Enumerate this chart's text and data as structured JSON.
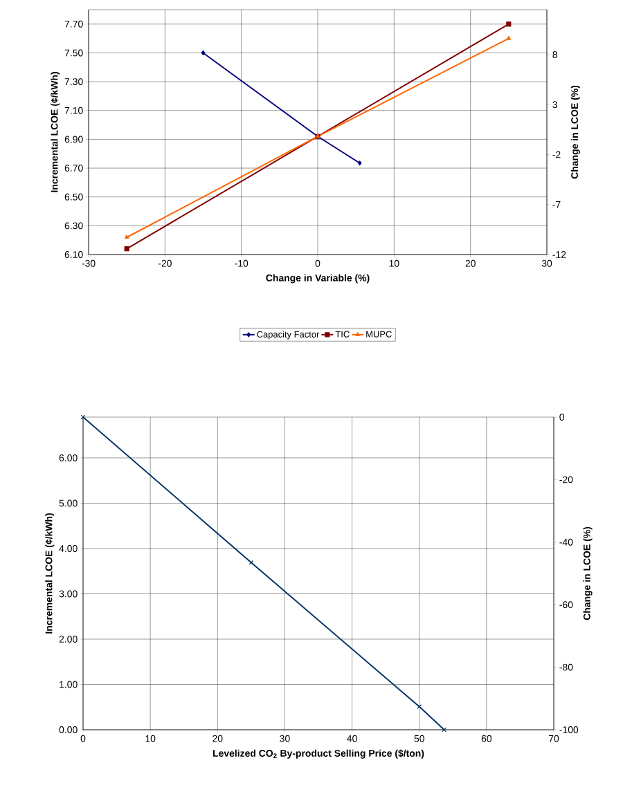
{
  "chart_data": [
    {
      "type": "line",
      "xlabel": "Change in Variable (%)",
      "ylabel": "Incremental LCOE (¢/kWh)",
      "y2label": "Change in LCOE (%)",
      "xlim": [
        -30,
        30
      ],
      "xticks": [
        -30,
        -20,
        -10,
        0,
        10,
        20,
        30
      ],
      "ylim": [
        6.1,
        7.8
      ],
      "yticks": [
        {
          "value": 6.1,
          "label": "6.10"
        },
        {
          "value": 6.3,
          "label": "6.30"
        },
        {
          "value": 6.5,
          "label": "6.50"
        },
        {
          "value": 6.7,
          "label": "6.70"
        },
        {
          "value": 6.9,
          "label": "6.90"
        },
        {
          "value": 7.1,
          "label": "7.10"
        },
        {
          "value": 7.3,
          "label": "7.30"
        },
        {
          "value": 7.5,
          "label": "7.50"
        },
        {
          "value": 7.7,
          "label": "7.70"
        }
      ],
      "y2lim": [
        -12,
        12.5
      ],
      "y2ticks": [
        -12,
        -7,
        -2,
        3,
        8
      ],
      "grid": true,
      "legend": "bottom",
      "line_style": "solid",
      "series": [
        {
          "name": "Capacity Factor",
          "color": "#000080",
          "marker": "diamond",
          "x": [
            -15,
            0,
            5.5
          ],
          "values": [
            7.5,
            6.92,
            6.735
          ]
        },
        {
          "name": "TIC",
          "color": "#800000",
          "marker": "square",
          "x": [
            -25,
            0,
            25
          ],
          "values": [
            6.14,
            6.92,
            7.7
          ]
        },
        {
          "name": "MUPC",
          "color": "#ff6600",
          "marker": "triangle",
          "x": [
            -25,
            0,
            25
          ],
          "values": [
            6.22,
            6.92,
            7.6
          ]
        }
      ]
    },
    {
      "type": "line",
      "xlabel": "Levelized CO$_{2}$ By-product Selling Price ($/ton)",
      "ylabel": "Incremental LCOE (¢/kWh)",
      "y2label": "Change in LCOE (%)",
      "xlim": [
        0,
        70
      ],
      "xticks": [
        0,
        10,
        20,
        30,
        40,
        50,
        60,
        70
      ],
      "ylim": [
        0,
        6.9
      ],
      "yticks": [
        {
          "value": 0,
          "label": "0.00"
        },
        {
          "value": 1,
          "label": "1.00"
        },
        {
          "value": 2,
          "label": "2.00"
        },
        {
          "value": 3,
          "label": "3.00"
        },
        {
          "value": 4,
          "label": "4.00"
        },
        {
          "value": 5,
          "label": "5.00"
        },
        {
          "value": 6,
          "label": "6.00"
        }
      ],
      "y2lim": [
        -100,
        0
      ],
      "y2ticks": [
        -100,
        -80,
        -60,
        -40,
        -20,
        0
      ],
      "grid": true,
      "line_style": "solid",
      "marker": "cross",
      "series": [
        {
          "color": "#003366",
          "x": [
            0,
            25,
            50,
            53.7
          ],
          "values": [
            6.9,
            3.69,
            0.51,
            0
          ]
        }
      ]
    }
  ]
}
